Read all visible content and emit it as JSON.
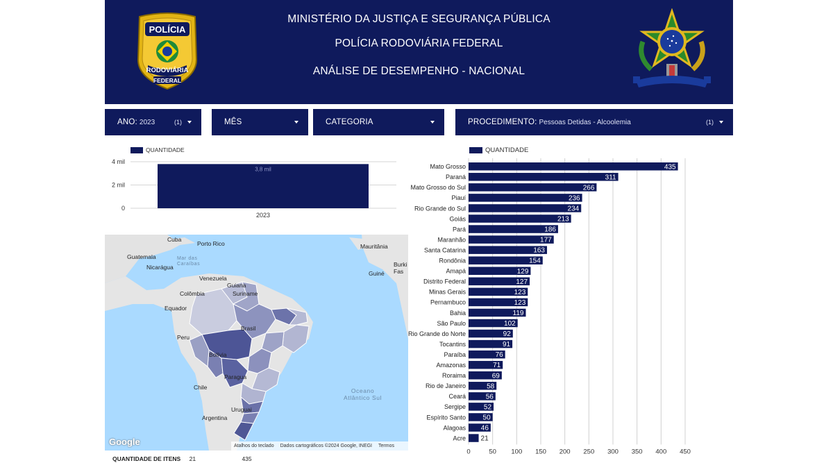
{
  "header": {
    "line1": "MINISTÉRIO DA JUSTIÇA E SEGURANÇA PÚBLICA",
    "line2": "POLÍCIA RODOVIÁRIA FEDERAL",
    "line3": "ANÁLISE DE DESEMPENHO - NACIONAL",
    "badge_top": "POLÍCIA",
    "badge_mid": "RODOVIÁRIA",
    "badge_bot": "FEDERAL"
  },
  "filters": {
    "ano": {
      "label": "ANO:",
      "value": "2023",
      "count": "(1)"
    },
    "mes": {
      "label": "MÊS"
    },
    "categoria": {
      "label": "CATEGORIA"
    },
    "procedimento": {
      "label": "PROCEDIMENTO:",
      "value": "Pessoas Detidas - Alcoolemia",
      "count": "(1)"
    }
  },
  "colors": {
    "primary": "#0f1a5c",
    "bar_light": "#ffffff"
  },
  "chart_data": [
    {
      "type": "bar",
      "legend": "QUANTIDADE",
      "categories": [
        "2023"
      ],
      "values": [
        3800
      ],
      "data_labels": [
        "3,8 mil"
      ],
      "y_ticks": [
        "0",
        "2 mil",
        "4 mil"
      ],
      "ylim": [
        0,
        4000
      ],
      "grid": true
    },
    {
      "type": "bar",
      "orientation": "horizontal",
      "legend": "QUANTIDADE",
      "categories": [
        "Mato Grosso",
        "Paraná",
        "Mato Grosso do Sul",
        "Piauí",
        "Rio Grande do Sul",
        "Goiás",
        "Pará",
        "Maranhão",
        "Santa Catarina",
        "Rondônia",
        "Amapá",
        "Distrito Federal",
        "Minas Gerais",
        "Pernambuco",
        "Bahia",
        "São Paulo",
        "Rio Grande do Norte",
        "Tocantins",
        "Paraíba",
        "Amazonas",
        "Roraima",
        "Rio de Janeiro",
        "Ceará",
        "Sergipe",
        "Espírito Santo",
        "Alagoas",
        "Acre"
      ],
      "values": [
        435,
        311,
        266,
        236,
        234,
        213,
        186,
        177,
        163,
        154,
        129,
        127,
        123,
        123,
        119,
        102,
        92,
        91,
        76,
        71,
        69,
        58,
        56,
        52,
        50,
        46,
        21
      ],
      "x_ticks": [
        0,
        50,
        100,
        150,
        200,
        250,
        300,
        350,
        400,
        450
      ],
      "xlim": [
        0,
        450
      ],
      "grid": true
    }
  ],
  "map": {
    "labels": {
      "cuba": "Cuba",
      "porto_rico": "Porto Rico",
      "mauritania": "Mauritânia",
      "guatemala": "Guatemala",
      "mar_das_caraibas": "Mar das\nCaraíbas",
      "nicaragua": "Nicarágua",
      "venezuela": "Venezuela",
      "burkina": "Burki\nFas",
      "guine": "Guiné",
      "guiana": "Guiana",
      "colombia": "Colômbia",
      "suriname": "Suriname",
      "equador": "Equador",
      "peru": "Peru",
      "bolivia": "Bolívia",
      "paraguai": "Paragua",
      "chile": "Chile",
      "uruguai": "Uruguai",
      "argentina": "Argentina",
      "oceano": "Oceano\nAtlântico Sul",
      "brasil": "Brasil"
    },
    "google": "Google",
    "attrib1": "Atalhos do teclado",
    "attrib2": "Dados cartográficos ©2024 Google, INEGI",
    "attrib3": "Termos"
  },
  "footer": {
    "label": "QUANTIDADE DE ITENS",
    "items_count": "21",
    "total": "435"
  }
}
